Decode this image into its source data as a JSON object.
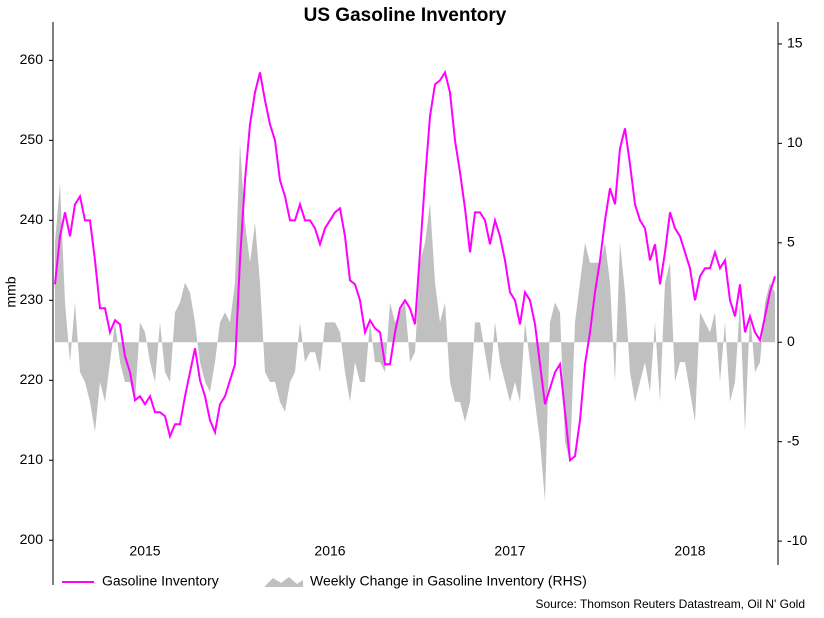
{
  "chart_data": {
    "type": "line",
    "title": "US Gasoline Inventory",
    "ylabel": "mmb",
    "source": "Source: Thomson Reuters Datastream, Oil N' Gold",
    "categories": [
      null,
      null,
      null,
      null,
      null,
      null,
      null,
      null,
      null,
      null,
      null,
      null,
      null,
      null,
      null,
      null,
      null,
      null,
      "2015",
      null,
      null,
      null,
      null,
      null,
      null,
      null,
      null,
      null,
      null,
      null,
      null,
      null,
      null,
      null,
      null,
      null,
      null,
      null,
      null,
      null,
      null,
      null,
      null,
      null,
      null,
      null,
      null,
      null,
      null,
      null,
      null,
      null,
      null,
      null,
      null,
      "2016",
      null,
      null,
      null,
      null,
      null,
      null,
      null,
      null,
      null,
      null,
      null,
      null,
      null,
      null,
      null,
      null,
      null,
      null,
      null,
      null,
      null,
      null,
      null,
      null,
      null,
      null,
      null,
      null,
      null,
      null,
      null,
      null,
      null,
      null,
      null,
      "2017",
      null,
      null,
      null,
      null,
      null,
      null,
      null,
      null,
      null,
      null,
      null,
      null,
      null,
      null,
      null,
      null,
      null,
      null,
      null,
      null,
      null,
      null,
      null,
      null,
      null,
      null,
      null,
      null,
      null,
      null,
      null,
      null,
      null,
      null,
      null,
      "2018",
      null,
      null,
      null,
      null,
      null,
      null,
      null,
      null,
      null,
      null,
      null,
      null,
      null,
      null,
      null,
      null,
      null
    ],
    "series": [
      {
        "name": "Gasoline Inventory",
        "color": "#ff00ff",
        "type": "line",
        "values": [
          232,
          238,
          241,
          238,
          242,
          243,
          240,
          240,
          235,
          229,
          229,
          226,
          227.5,
          227,
          223,
          221,
          217.5,
          218,
          217,
          218,
          216,
          216,
          215.5,
          213,
          214.5,
          214.5,
          218,
          221,
          224,
          220,
          218,
          215,
          213.5,
          217,
          218,
          220,
          222,
          235,
          245,
          252,
          256,
          258.5,
          255,
          252,
          250,
          245,
          243,
          240,
          240,
          242,
          240,
          240,
          239,
          237,
          239,
          240,
          241,
          241.5,
          238,
          232.5,
          232,
          230,
          226,
          227.5,
          226.5,
          226,
          222,
          222,
          226,
          229,
          230,
          229,
          227,
          236,
          245,
          253,
          257,
          257.5,
          258.5,
          256,
          250,
          246,
          241.5,
          236,
          241,
          241,
          240,
          237,
          240,
          238,
          235,
          231,
          230,
          227,
          231,
          230,
          227,
          222,
          217,
          219,
          221,
          222,
          216,
          210,
          210.5,
          215,
          222,
          226,
          231,
          235,
          240,
          244,
          242,
          249,
          251.5,
          247,
          242,
          240,
          239,
          235,
          237,
          232,
          236,
          241,
          239,
          238,
          236,
          234,
          230,
          233,
          234,
          234,
          236,
          234,
          235,
          230,
          228,
          232,
          226,
          228,
          226,
          225,
          228,
          231,
          233
        ]
      },
      {
        "name": "Weekly Change in Gasoline Inventory (RHS)",
        "color": "#c0c0c0",
        "type": "area",
        "axis": "y2",
        "values": [
          5,
          8,
          2,
          -1,
          2,
          -1.5,
          -2,
          -3,
          -4.5,
          -2,
          -3,
          -1,
          1,
          -1,
          -2,
          -2,
          -3,
          1,
          0.5,
          -1,
          -2,
          1,
          -1.5,
          -2,
          1.5,
          2,
          3,
          2.5,
          1,
          -1,
          -2,
          -2.5,
          -1,
          1,
          1.5,
          1,
          3,
          10,
          6,
          4,
          6,
          3,
          -1.5,
          -2,
          -2,
          -3,
          -3.5,
          -2,
          -1.5,
          1,
          -1,
          -0.5,
          -0.5,
          -1.5,
          1,
          1,
          1,
          0.5,
          -1.5,
          -3,
          -1,
          -2,
          -2,
          1,
          -1,
          -1,
          -1.5,
          2,
          1,
          1.5,
          2,
          -1,
          -0.5,
          4,
          5,
          7,
          3,
          1,
          2,
          -2,
          -3,
          -3,
          -4,
          -3,
          1,
          1,
          -0.5,
          -2,
          1,
          -1,
          -2,
          -3,
          -2,
          -3,
          1,
          -1,
          -3,
          -5,
          -8,
          1,
          2,
          1.5,
          -5,
          -6,
          1,
          3,
          5,
          4,
          4,
          4,
          5,
          3,
          -2,
          5,
          2.5,
          -1.5,
          -3,
          -2,
          -1,
          -2.5,
          1,
          -3,
          3,
          4,
          -2,
          -1,
          -1,
          -2.5,
          -4,
          1.5,
          1,
          0.5,
          1.5,
          -2,
          1,
          -3,
          -2,
          2,
          -4.5,
          1.5,
          -1.5,
          -1,
          2,
          3,
          2.5
        ]
      }
    ],
    "ylim": [
      196.9,
      263.8
    ],
    "yticks": [
      200,
      210,
      220,
      230,
      240,
      250,
      260
    ],
    "y2lim": [
      -11.2,
      15.7
    ],
    "y2ticks": [
      -10,
      -5,
      0,
      5,
      10,
      15
    ],
    "grid": false,
    "legend": "bottom"
  }
}
